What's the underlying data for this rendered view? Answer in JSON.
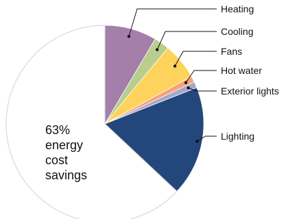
{
  "chart_data": {
    "type": "pie",
    "title": "",
    "start_angle_deg": 0,
    "direction": "clockwise",
    "slices": [
      {
        "name": "Heating",
        "value": 8.5,
        "color": "#a37fa9"
      },
      {
        "name": "Cooling",
        "value": 2.5,
        "color": "#b8cd8e"
      },
      {
        "name": "Fans",
        "value": 6.0,
        "color": "#fdd35c"
      },
      {
        "name": "Hot water",
        "value": 1.0,
        "color": "#f7a276"
      },
      {
        "name": "Exterior lights",
        "value": 1.0,
        "color": "#a3a7cb"
      },
      {
        "name": "Lighting",
        "value": 18.0,
        "color": "#24477b"
      },
      {
        "name": "Savings",
        "value": 63.0,
        "color": "#ffffff",
        "outline": "#d8d8d8"
      }
    ],
    "center_label_lines": [
      "63%",
      "energy",
      "cost",
      "savings"
    ]
  }
}
